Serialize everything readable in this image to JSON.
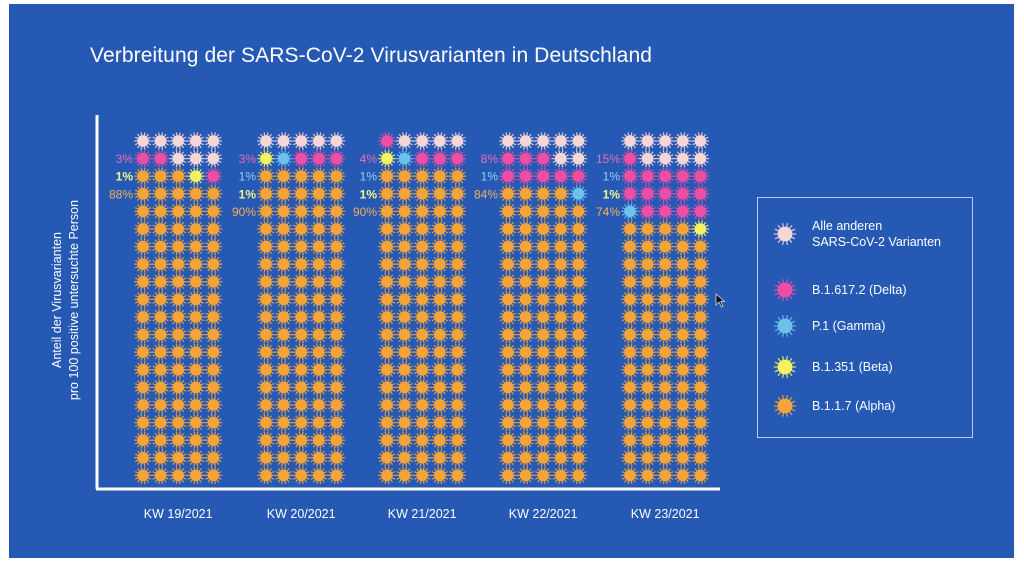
{
  "chart_data": {
    "type": "waffle",
    "title": "Verbreitung der SARS-CoV-2 Virusvarianten in Deutschland",
    "xlabel": "",
    "ylabel": "Anteil der Virusvarianten pro 100 positive untersuchte Person",
    "units_per_column": 100,
    "grid_rows": 20,
    "grid_cols": 5,
    "legend_position": "right",
    "categories": [
      "KW 19/2021",
      "KW 20/2021",
      "KW 21/2021",
      "KW 22/2021",
      "KW 23/2021"
    ],
    "series": [
      {
        "key": "other",
        "name": "Alle anderen\nSARS-CoV-2 Varianten",
        "color": "#f6d6d6",
        "values": [
          8,
          5,
          4,
          7,
          9
        ]
      },
      {
        "key": "delta",
        "name": "B.1.617.2 (Delta)",
        "color": "#ee4fa4",
        "values": [
          3,
          3,
          4,
          8,
          15
        ]
      },
      {
        "key": "gamma",
        "name": "P.1 (Gamma)",
        "color": "#6ec1ec",
        "values": [
          0,
          1,
          1,
          1,
          1
        ]
      },
      {
        "key": "beta",
        "name": "B.1.351 (Beta)",
        "color": "#f7f25f",
        "values": [
          1,
          1,
          1,
          0,
          1
        ]
      },
      {
        "key": "alpha",
        "name": "B.1.1.7 (Alpha)",
        "color": "#f5a43a",
        "values": [
          88,
          90,
          90,
          84,
          74
        ]
      }
    ],
    "cell_layout": [
      [
        "O",
        "O",
        "O",
        "O",
        "O",
        "D",
        "D",
        "O",
        "O",
        "O",
        "A",
        "A",
        "A",
        "B",
        "D"
      ],
      [
        "O",
        "O",
        "O",
        "O",
        "O",
        "B",
        "G",
        "D",
        "D",
        "D"
      ],
      [
        "D",
        "O",
        "O",
        "O",
        "O",
        "B",
        "G",
        "D",
        "D",
        "D"
      ],
      [
        "O",
        "O",
        "O",
        "O",
        "O",
        "D",
        "D",
        "D",
        "O",
        "O",
        "D",
        "D",
        "D",
        "D",
        "D",
        "A",
        "A",
        "A",
        "A",
        "G"
      ],
      [
        "O",
        "O",
        "O",
        "O",
        "O",
        "D",
        "O",
        "O",
        "O",
        "O",
        "D",
        "D",
        "D",
        "D",
        "D",
        "D",
        "D",
        "D",
        "D",
        "D",
        "G",
        "D",
        "D",
        "D",
        "D",
        "A",
        "A",
        "A",
        "A",
        "B"
      ]
    ],
    "annotations": [
      [
        {
          "text": "3%",
          "series": "delta"
        },
        {
          "text": "1%",
          "series": "beta"
        },
        {
          "text": "88%",
          "series": "alpha"
        }
      ],
      [
        {
          "text": "3%",
          "series": "delta"
        },
        {
          "text": "1%",
          "series": "gamma"
        },
        {
          "text": "1%",
          "series": "beta"
        },
        {
          "text": "90%",
          "series": "alpha"
        }
      ],
      [
        {
          "text": "4%",
          "series": "delta"
        },
        {
          "text": "1%",
          "series": "gamma"
        },
        {
          "text": "1%",
          "series": "beta"
        },
        {
          "text": "90%",
          "series": "alpha"
        }
      ],
      [
        {
          "text": "8%",
          "series": "delta"
        },
        {
          "text": "1%",
          "series": "gamma"
        },
        {
          "text": "84%",
          "series": "alpha"
        }
      ],
      [
        {
          "text": "15%",
          "series": "delta"
        },
        {
          "text": "1%",
          "series": "gamma"
        },
        {
          "text": "1%",
          "series": "beta"
        },
        {
          "text": "74%",
          "series": "alpha"
        }
      ]
    ],
    "label_colors": {
      "delta": "#f06ab8",
      "gamma": "#8fd0f4",
      "beta": "#f2f58a",
      "alpha": "#f5ae55"
    },
    "axis_color": "#ffffff",
    "background": "#2559b4"
  },
  "ylabel_line1": "Anteil der Virusvarianten",
  "ylabel_line2": "pro 100 positive untersuchte Person"
}
